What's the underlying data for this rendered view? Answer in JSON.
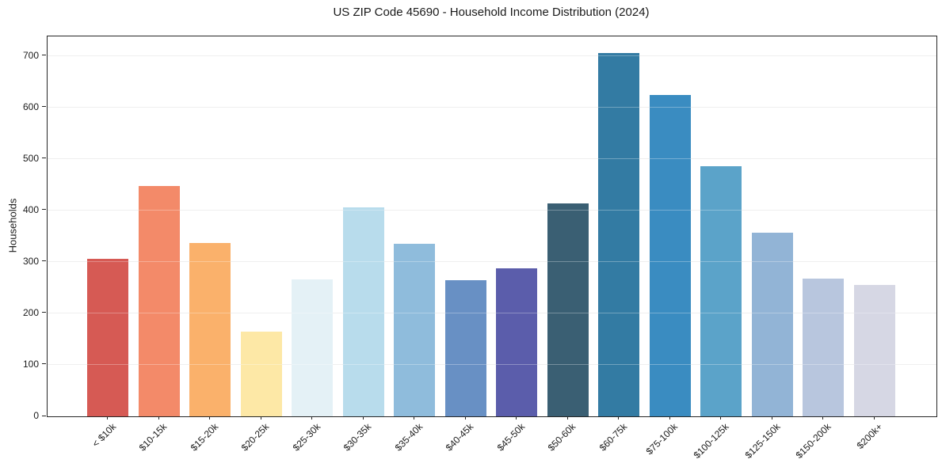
{
  "chart_data": {
    "type": "bar",
    "title": "US ZIP Code 45690 - Household Income Distribution (2024)",
    "xlabel": "",
    "ylabel": "Households",
    "categories": [
      "< $10k",
      "$10-15k",
      "$15-20k",
      "$20-25k",
      "$25-30k",
      "$30-35k",
      "$35-40k",
      "$40-45k",
      "$45-50k",
      "$50-60k",
      "$60-75k",
      "$75-100k",
      "$100-125k",
      "$125-150k",
      "$150-200k",
      "$200k+"
    ],
    "values": [
      306,
      447,
      337,
      165,
      266,
      406,
      335,
      265,
      287,
      414,
      706,
      625,
      486,
      357,
      268,
      256
    ],
    "bar_colors": [
      "#d65a54",
      "#f38a69",
      "#fab16b",
      "#fde8a6",
      "#e4f1f6",
      "#b8dcec",
      "#8fbcdc",
      "#6890c4",
      "#5b5dab",
      "#3a5f73",
      "#337ba3",
      "#3a8cc1",
      "#5ba3c9",
      "#92b4d6",
      "#b8c6de",
      "#d6d7e4"
    ],
    "ylim": [
      0,
      738
    ],
    "yticks": [
      0,
      100,
      200,
      300,
      400,
      500,
      600,
      700
    ],
    "grid": "horizontal-gridlines-on",
    "legend": "none",
    "background_color": "#ffffff",
    "frame_color": "#262626",
    "gridline_color": "#e9e9e9",
    "tick_label_color": "#1a1a1a"
  }
}
